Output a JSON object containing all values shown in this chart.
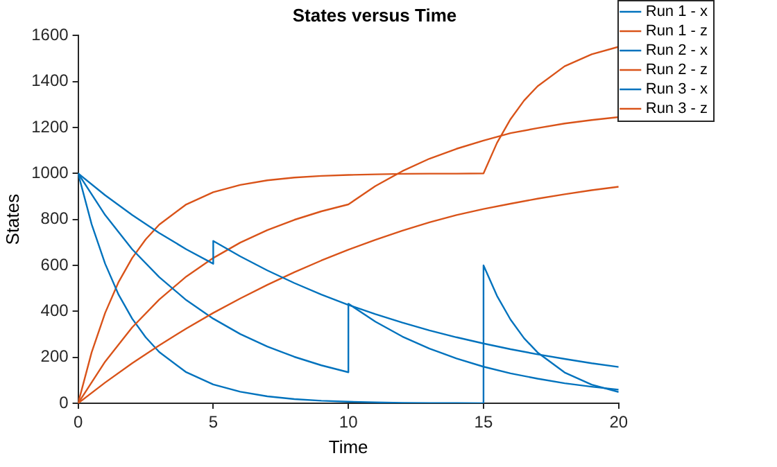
{
  "chart_data": {
    "type": "line",
    "title": "States versus Time",
    "xlabel": "Time",
    "ylabel": "States",
    "xlim": [
      0,
      20
    ],
    "xticks": [
      0,
      5,
      10,
      15,
      20
    ],
    "ylim": [
      0,
      1600
    ],
    "yticks": [
      0,
      200,
      400,
      600,
      800,
      1000,
      1200,
      1400,
      1600
    ],
    "grid": false,
    "legend": "top right",
    "marker": "none",
    "line_style": "solid",
    "series": [
      {
        "name": "Run 1 - x",
        "color": "#0072bd",
        "x": [
          0,
          1,
          2,
          3,
          4,
          5,
          5,
          6,
          7,
          8,
          9,
          10,
          11,
          12,
          13,
          14,
          15,
          16,
          17,
          18,
          19,
          20
        ],
        "values": [
          1000,
          905,
          819,
          741,
          670,
          607,
          706,
          639,
          578,
          523,
          473,
          428,
          388,
          351,
          317,
          287,
          260,
          235,
          213,
          193,
          174,
          158
        ]
      },
      {
        "name": "Run 1 - z",
        "color": "#d95319",
        "x": [
          0,
          1,
          2,
          3,
          4,
          5,
          6,
          7,
          8,
          9,
          10,
          11,
          12,
          13,
          14,
          15,
          16,
          17,
          18,
          19,
          20
        ],
        "values": [
          0,
          90,
          174,
          252,
          325,
          393,
          456,
          515,
          570,
          621,
          668,
          711,
          751,
          787,
          819,
          845,
          868,
          890,
          909,
          927,
          942
        ]
      },
      {
        "name": "Run 2 - x",
        "color": "#0072bd",
        "x": [
          0,
          1,
          2,
          3,
          4,
          5,
          6,
          7,
          8,
          9,
          10,
          10,
          11,
          12,
          13,
          14,
          15,
          16,
          17,
          18,
          19,
          20
        ],
        "values": [
          1000,
          819,
          670,
          549,
          449,
          368,
          301,
          247,
          202,
          165,
          135,
          433,
          355,
          290,
          238,
          195,
          159,
          130,
          107,
          87,
          72,
          59
        ]
      },
      {
        "name": "Run 2 - z",
        "color": "#d95319",
        "x": [
          0,
          1,
          2,
          3,
          4,
          5,
          6,
          7,
          8,
          9,
          10,
          11,
          12,
          13,
          14,
          15,
          16,
          17,
          18,
          19,
          20
        ],
        "values": [
          0,
          181,
          330,
          451,
          551,
          632,
          699,
          753,
          798,
          835,
          865,
          945,
          1010,
          1064,
          1107,
          1143,
          1175,
          1197,
          1217,
          1232,
          1245
        ]
      },
      {
        "name": "Run 3 - x",
        "color": "#0072bd",
        "x": [
          0,
          0.5,
          1,
          1.5,
          2,
          2.5,
          3,
          4,
          5,
          6,
          7,
          8,
          9,
          10,
          11,
          12,
          13,
          14,
          15,
          15,
          15.5,
          16,
          16.5,
          17,
          18,
          19,
          20
        ],
        "values": [
          1000,
          779,
          607,
          472,
          368,
          287,
          223,
          135,
          82,
          50,
          30,
          18,
          11,
          7,
          4,
          2,
          1,
          1,
          0,
          600,
          467,
          364,
          283,
          221,
          134,
          81,
          49
        ]
      },
      {
        "name": "Run 3 - z",
        "color": "#d95319",
        "x": [
          0,
          0.5,
          1,
          1.5,
          2,
          2.5,
          3,
          4,
          5,
          6,
          7,
          8,
          9,
          10,
          11,
          12,
          13,
          14,
          15,
          15.5,
          16,
          16.5,
          17,
          18,
          19,
          20
        ],
        "values": [
          0,
          221,
          393,
          528,
          632,
          713,
          777,
          865,
          918,
          950,
          970,
          982,
          989,
          993,
          996,
          998,
          999,
          999,
          1000,
          1133,
          1236,
          1317,
          1379,
          1466,
          1518,
          1551
        ]
      }
    ]
  }
}
